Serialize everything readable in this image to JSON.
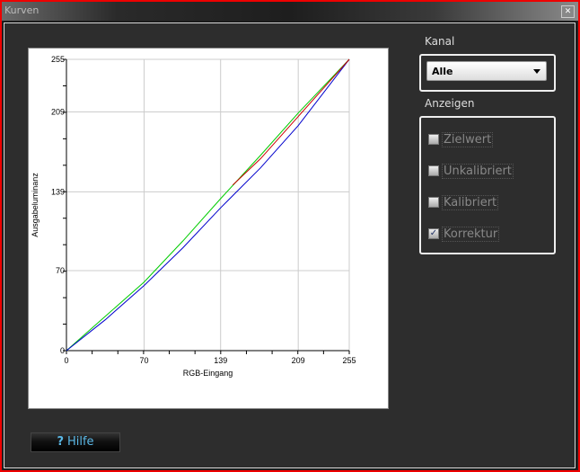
{
  "window": {
    "title": "Kurven",
    "close_icon": "close-icon"
  },
  "sidebar": {
    "kanal_label": "Kanal",
    "kanal_value": "Alle",
    "anzeigen_label": "Anzeigen",
    "options": [
      {
        "label": "Zielwert",
        "checked": false
      },
      {
        "label": "Unkalibriert",
        "checked": false
      },
      {
        "label": "Kalibriert",
        "checked": false
      },
      {
        "label": "Korrektur",
        "checked": true
      }
    ]
  },
  "help": {
    "icon": "question-icon",
    "label": "Hilfe",
    "icon_text": "?"
  },
  "chart_data": {
    "type": "line",
    "xlabel": "RGB-Eingang",
    "ylabel": "Ausgabeluminanz",
    "xlim": [
      0,
      255
    ],
    "ylim": [
      0,
      255
    ],
    "xticks": [
      0,
      70,
      139,
      209,
      255
    ],
    "yticks": [
      0,
      70,
      139,
      209,
      255
    ],
    "grid": true,
    "series": [
      {
        "color": "#00cc00",
        "points": [
          [
            0,
            0
          ],
          [
            35,
            30
          ],
          [
            70,
            60
          ],
          [
            105,
            96
          ],
          [
            139,
            133
          ],
          [
            175,
            171
          ],
          [
            209,
            208
          ],
          [
            255,
            255
          ]
        ]
      },
      {
        "color": "#0000cc",
        "points": [
          [
            0,
            0
          ],
          [
            35,
            27
          ],
          [
            70,
            57
          ],
          [
            105,
            90
          ],
          [
            139,
            125
          ],
          [
            175,
            160
          ],
          [
            209,
            197
          ],
          [
            255,
            255
          ]
        ]
      },
      {
        "color": "#cc0000",
        "points": [
          [
            150,
            145
          ],
          [
            175,
            168
          ],
          [
            209,
            205
          ],
          [
            255,
            255
          ]
        ]
      }
    ]
  }
}
